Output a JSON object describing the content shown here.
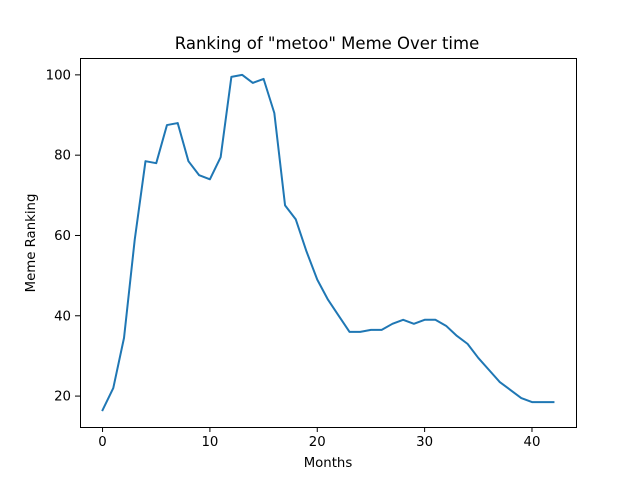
{
  "chart_data": {
    "type": "line",
    "title": "Ranking of \"metoo\" Meme Over time",
    "xlabel": "Months",
    "ylabel": "Meme Ranking",
    "xlim": [
      -2.1,
      44.1
    ],
    "ylim": [
      12.3,
      104.2
    ],
    "xticks": [
      0,
      10,
      20,
      30,
      40
    ],
    "yticks": [
      20,
      40,
      60,
      80,
      100
    ],
    "x_tick_labels": [
      "0",
      "10",
      "20",
      "30",
      "40"
    ],
    "y_tick_labels": [
      "20",
      "40",
      "60",
      "80",
      "100"
    ],
    "grid": false,
    "legend": "none",
    "series": [
      {
        "color": "#1f77b4",
        "x": [
          0,
          1,
          2,
          3,
          4,
          5,
          6,
          7,
          8,
          9,
          10,
          11,
          12,
          13,
          14,
          15,
          16,
          17,
          18,
          19,
          20,
          21,
          22,
          23,
          24,
          25,
          26,
          27,
          28,
          29,
          30,
          31,
          32,
          33,
          34,
          35,
          36,
          37,
          38,
          39,
          40,
          41,
          42
        ],
        "y": [
          16.5,
          22,
          34.5,
          59,
          78.5,
          78,
          87.5,
          88,
          78.5,
          75,
          74,
          79.5,
          99.5,
          100,
          98,
          99,
          90.5,
          67.5,
          64,
          56,
          49,
          44,
          40,
          36,
          36,
          36.5,
          36.5,
          38,
          39,
          38,
          39,
          39,
          37.5,
          35,
          33,
          29.5,
          26.5,
          23.5,
          21.5,
          19.5,
          18.5,
          18.5,
          18.5
        ]
      }
    ]
  }
}
